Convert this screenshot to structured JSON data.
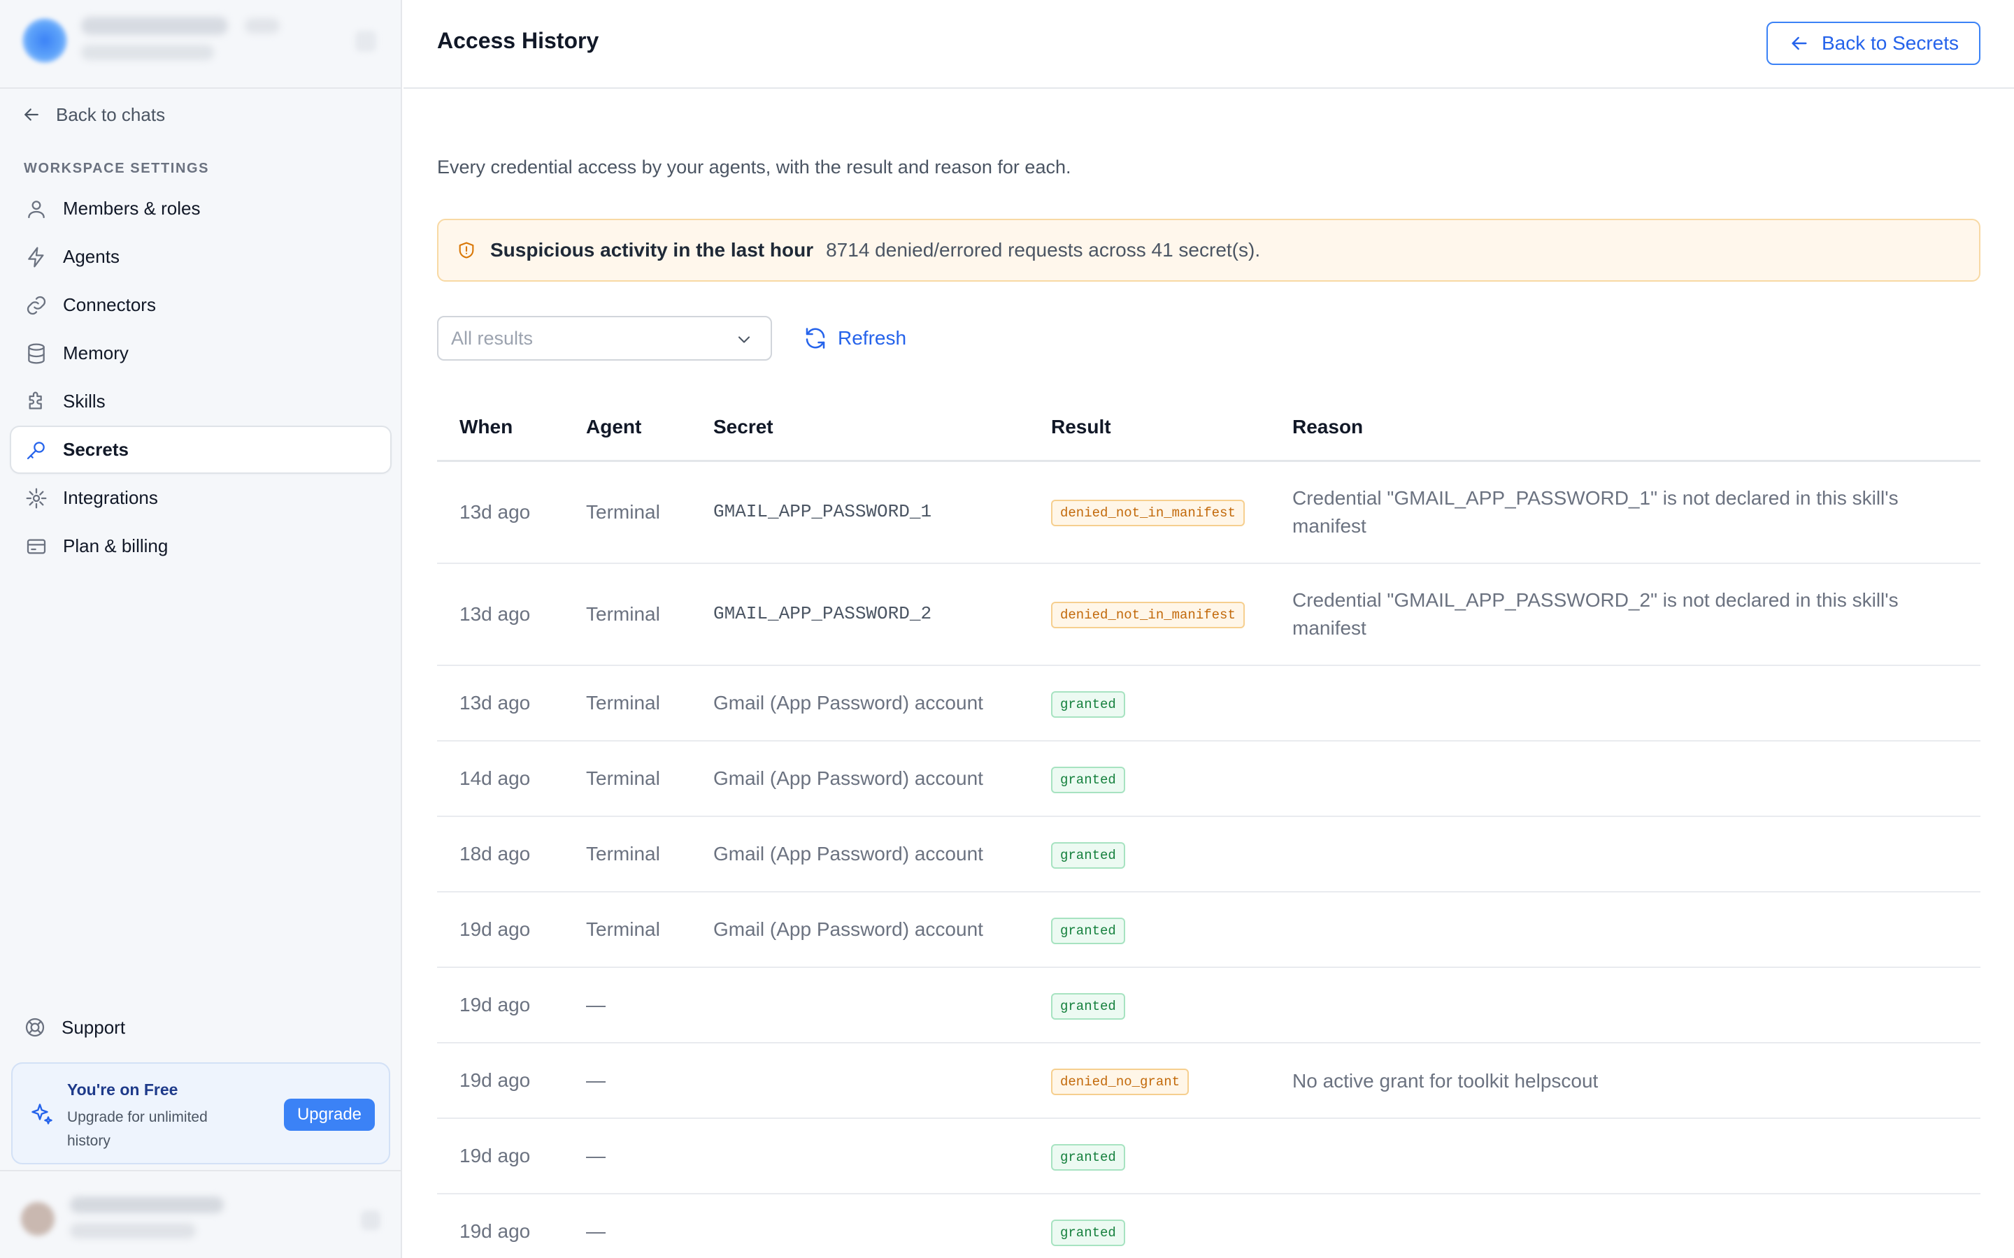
{
  "sidebar": {
    "back_label": "Back to chats",
    "section_label": "WORKSPACE SETTINGS",
    "items": [
      {
        "label": "Members & roles",
        "icon": "user-icon"
      },
      {
        "label": "Agents",
        "icon": "lightning-icon"
      },
      {
        "label": "Connectors",
        "icon": "link-icon"
      },
      {
        "label": "Memory",
        "icon": "database-icon"
      },
      {
        "label": "Skills",
        "icon": "puzzle-icon"
      },
      {
        "label": "Secrets",
        "icon": "key-icon",
        "active": true
      },
      {
        "label": "Integrations",
        "icon": "plug-icon"
      },
      {
        "label": "Plan & billing",
        "icon": "credit-card-icon"
      }
    ],
    "support_label": "Support",
    "upgrade": {
      "title": "You're on Free",
      "subtitle": "Upgrade for unlimited history",
      "button": "Upgrade"
    }
  },
  "header": {
    "title": "Access History",
    "back_button": "Back to Secrets"
  },
  "description": "Every credential access by your agents, with the result and reason for each.",
  "alert": {
    "title": "Suspicious activity in the last hour",
    "message": "8714 denied/errored requests across 41 secret(s)."
  },
  "filter": {
    "value": "All results",
    "refresh_label": "Refresh"
  },
  "table": {
    "columns": [
      "When",
      "Agent",
      "Secret",
      "Result",
      "Reason"
    ],
    "rows": [
      {
        "when": "13d ago",
        "agent": "Terminal",
        "secret": "GMAIL_APP_PASSWORD_1",
        "secret_mono": true,
        "result": "denied_not_in_manifest",
        "reason": "Credential \"GMAIL_APP_PASSWORD_1\" is not declared in this skill's manifest"
      },
      {
        "when": "13d ago",
        "agent": "Terminal",
        "secret": "GMAIL_APP_PASSWORD_2",
        "secret_mono": true,
        "result": "denied_not_in_manifest",
        "reason": "Credential \"GMAIL_APP_PASSWORD_2\" is not declared in this skill's manifest"
      },
      {
        "when": "13d ago",
        "agent": "Terminal",
        "secret": "Gmail (App Password) account",
        "secret_mono": false,
        "result": "granted",
        "reason": ""
      },
      {
        "when": "14d ago",
        "agent": "Terminal",
        "secret": "Gmail (App Password) account",
        "secret_mono": false,
        "result": "granted",
        "reason": ""
      },
      {
        "when": "18d ago",
        "agent": "Terminal",
        "secret": "Gmail (App Password) account",
        "secret_mono": false,
        "result": "granted",
        "reason": ""
      },
      {
        "when": "19d ago",
        "agent": "Terminal",
        "secret": "Gmail (App Password) account",
        "secret_mono": false,
        "result": "granted",
        "reason": ""
      },
      {
        "when": "19d ago",
        "agent": "—",
        "secret": "",
        "secret_mono": false,
        "result": "granted",
        "reason": ""
      },
      {
        "when": "19d ago",
        "agent": "—",
        "secret": "",
        "secret_mono": false,
        "result": "denied_no_grant",
        "reason": "No active grant for toolkit helpscout"
      },
      {
        "when": "19d ago",
        "agent": "—",
        "secret": "",
        "secret_mono": false,
        "result": "granted",
        "reason": ""
      },
      {
        "when": "19d ago",
        "agent": "—",
        "secret": "",
        "secret_mono": false,
        "result": "granted",
        "reason": ""
      }
    ]
  },
  "colors": {
    "accent": "#2563eb",
    "granted": "#15803d",
    "denied": "#c2690a",
    "alert_bg": "#fff7ec"
  }
}
